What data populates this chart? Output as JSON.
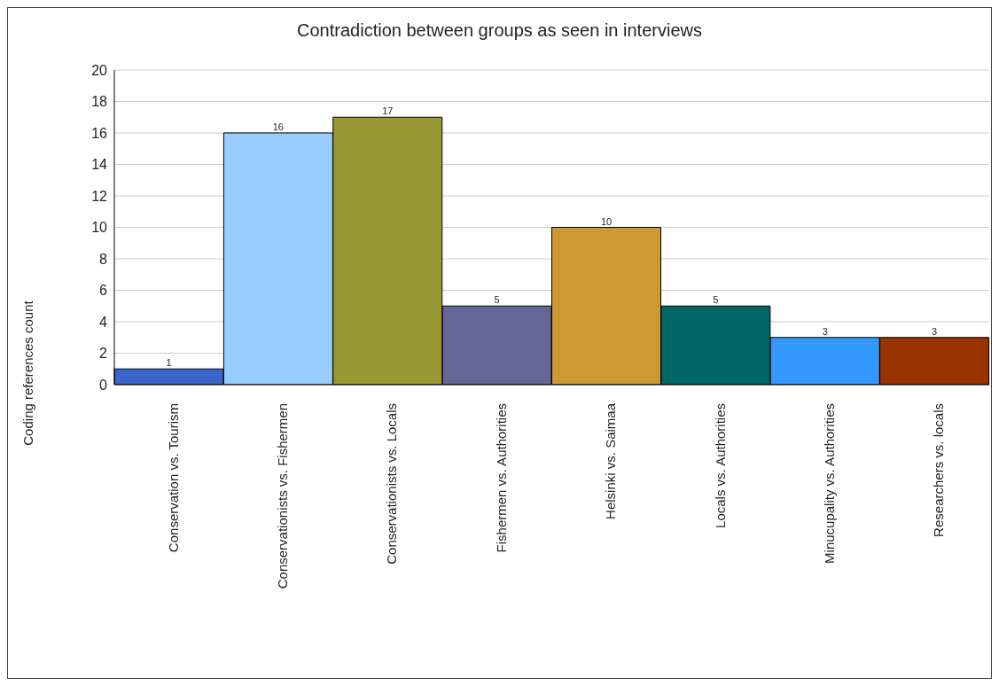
{
  "chart_data": {
    "type": "bar",
    "title": "Contradiction between groups as seen in interviews",
    "ylabel": "Coding references count",
    "categories": [
      "Conservation vs. Tourism",
      "Conservationists vs. Fishermen",
      "Conservationists vs. Locals",
      "Fishermen vs. Authorities",
      "Helsinki vs. Saimaa",
      "Locals vs. Authorities",
      "Minucupality vs. Authorities",
      "Researchers vs. locals"
    ],
    "values": [
      1,
      16,
      17,
      5,
      10,
      5,
      3,
      3
    ],
    "colors": [
      "#3a66cc",
      "#99ccff",
      "#999933",
      "#666699",
      "#cc9933",
      "#006666",
      "#3399ff",
      "#993300"
    ],
    "ylim": [
      0,
      20
    ],
    "yticks": [
      0,
      2,
      4,
      6,
      8,
      10,
      12,
      14,
      16,
      18,
      20
    ],
    "grid": "y",
    "data_labels": true
  }
}
